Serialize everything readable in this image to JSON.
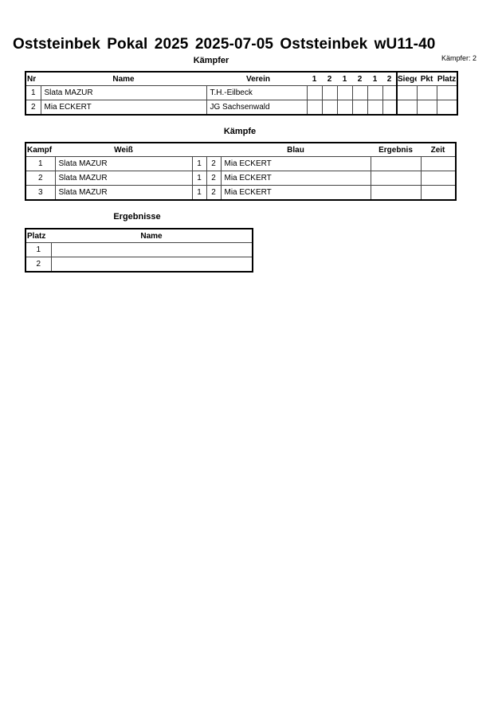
{
  "title": "Oststeinbek Pokal 2025  2025-07-05  Oststeinbek   wU11-40",
  "fighters": {
    "heading": "Kämpfer",
    "count": "Kämpfer: 2",
    "columns": [
      "Nr",
      "Name",
      "Verein",
      "1",
      "2",
      "1",
      "2",
      "1",
      "2",
      "Siege",
      "Pkt",
      "Platz"
    ],
    "rows": [
      {
        "nr": "1",
        "name": "Slata MAZUR",
        "club": "T.H.-Eilbeck"
      },
      {
        "nr": "2",
        "name": "Mia ECKERT",
        "club": "JG Sachsenwald"
      }
    ]
  },
  "fights": {
    "heading": "Kämpfe",
    "columns": [
      "Kampf",
      "Weiß",
      "Blau",
      "Ergebnis",
      "Zeit"
    ],
    "rows": [
      {
        "no": "1",
        "white": "Slata MAZUR",
        "w_nr": "1",
        "b_nr": "2",
        "blue": "Mia ECKERT"
      },
      {
        "no": "2",
        "white": "Slata MAZUR",
        "w_nr": "1",
        "b_nr": "2",
        "blue": "Mia ECKERT"
      },
      {
        "no": "3",
        "white": "Slata MAZUR",
        "w_nr": "1",
        "b_nr": "2",
        "blue": "Mia ECKERT"
      }
    ]
  },
  "results": {
    "heading": "Ergebnisse",
    "columns": [
      "Platz",
      "Name"
    ],
    "rows": [
      {
        "place": "1",
        "name": ""
      },
      {
        "place": "2",
        "name": ""
      }
    ]
  }
}
